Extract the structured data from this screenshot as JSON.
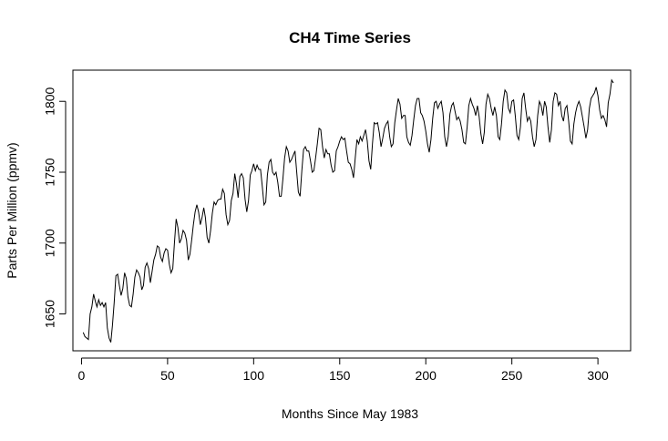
{
  "chart_data": {
    "type": "line",
    "title": "CH4 Time Series",
    "xlabel": "Months Since May 1983",
    "ylabel": "Parts Per Million (ppmv)",
    "xlim": [
      -5,
      319
    ],
    "ylim": [
      1624,
      1822
    ],
    "xticks": [
      0,
      50,
      100,
      150,
      200,
      250,
      300
    ],
    "yticks": [
      1650,
      1700,
      1750,
      1800
    ],
    "grid": false,
    "series": [
      {
        "color": "#000000",
        "points": [
          [
            1,
            1637
          ],
          [
            2,
            1634
          ],
          [
            4,
            1632
          ],
          [
            5,
            1650
          ],
          [
            6,
            1655
          ],
          [
            7,
            1664
          ],
          [
            8,
            1659
          ],
          [
            9,
            1655
          ],
          [
            10,
            1660
          ],
          [
            11,
            1656
          ],
          [
            12,
            1658
          ],
          [
            13,
            1655
          ],
          [
            14,
            1658
          ],
          [
            15,
            1640
          ],
          [
            16,
            1633
          ],
          [
            17,
            1630
          ],
          [
            18,
            1642
          ],
          [
            19,
            1658
          ],
          [
            20,
            1677
          ],
          [
            21,
            1678
          ],
          [
            22,
            1670
          ],
          [
            23,
            1663
          ],
          [
            24,
            1668
          ],
          [
            25,
            1679
          ],
          [
            26,
            1675
          ],
          [
            27,
            1662
          ],
          [
            28,
            1656
          ],
          [
            29,
            1655
          ],
          [
            30,
            1664
          ],
          [
            31,
            1676
          ],
          [
            32,
            1681
          ],
          [
            33,
            1679
          ],
          [
            34,
            1676
          ],
          [
            35,
            1667
          ],
          [
            36,
            1670
          ],
          [
            37,
            1683
          ],
          [
            38,
            1686
          ],
          [
            39,
            1682
          ],
          [
            40,
            1672
          ],
          [
            41,
            1680
          ],
          [
            42,
            1688
          ],
          [
            43,
            1692
          ],
          [
            44,
            1698
          ],
          [
            45,
            1697
          ],
          [
            46,
            1690
          ],
          [
            47,
            1687
          ],
          [
            48,
            1693
          ],
          [
            49,
            1696
          ],
          [
            50,
            1695
          ],
          [
            51,
            1685
          ],
          [
            52,
            1679
          ],
          [
            53,
            1682
          ],
          [
            54,
            1700
          ],
          [
            55,
            1717
          ],
          [
            56,
            1711
          ],
          [
            57,
            1700
          ],
          [
            58,
            1703
          ],
          [
            59,
            1709
          ],
          [
            60,
            1707
          ],
          [
            61,
            1702
          ],
          [
            62,
            1688
          ],
          [
            63,
            1692
          ],
          [
            64,
            1702
          ],
          [
            65,
            1713
          ],
          [
            66,
            1722
          ],
          [
            67,
            1727
          ],
          [
            68,
            1722
          ],
          [
            69,
            1713
          ],
          [
            70,
            1718
          ],
          [
            71,
            1725
          ],
          [
            72,
            1718
          ],
          [
            73,
            1704
          ],
          [
            74,
            1700
          ],
          [
            75,
            1709
          ],
          [
            76,
            1721
          ],
          [
            77,
            1729
          ],
          [
            78,
            1727
          ],
          [
            79,
            1730
          ],
          [
            80,
            1731
          ],
          [
            81,
            1731
          ],
          [
            82,
            1738
          ],
          [
            83,
            1735
          ],
          [
            84,
            1720
          ],
          [
            85,
            1713
          ],
          [
            86,
            1716
          ],
          [
            87,
            1730
          ],
          [
            88,
            1735
          ],
          [
            89,
            1749
          ],
          [
            90,
            1742
          ],
          [
            91,
            1732
          ],
          [
            92,
            1747
          ],
          [
            93,
            1749
          ],
          [
            94,
            1746
          ],
          [
            95,
            1731
          ],
          [
            96,
            1722
          ],
          [
            97,
            1730
          ],
          [
            98,
            1748
          ],
          [
            99,
            1751
          ],
          [
            100,
            1756
          ],
          [
            101,
            1751
          ],
          [
            102,
            1755
          ],
          [
            103,
            1752
          ],
          [
            104,
            1752
          ],
          [
            105,
            1740
          ],
          [
            106,
            1727
          ],
          [
            107,
            1729
          ],
          [
            108,
            1748
          ],
          [
            109,
            1757
          ],
          [
            110,
            1759
          ],
          [
            111,
            1750
          ],
          [
            112,
            1748
          ],
          [
            113,
            1750
          ],
          [
            114,
            1743
          ],
          [
            115,
            1733
          ],
          [
            116,
            1733
          ],
          [
            117,
            1745
          ],
          [
            118,
            1760
          ],
          [
            119,
            1768
          ],
          [
            120,
            1765
          ],
          [
            121,
            1757
          ],
          [
            122,
            1759
          ],
          [
            123,
            1762
          ],
          [
            124,
            1765
          ],
          [
            125,
            1750
          ],
          [
            126,
            1736
          ],
          [
            127,
            1733
          ],
          [
            128,
            1751
          ],
          [
            129,
            1766
          ],
          [
            130,
            1768
          ],
          [
            131,
            1765
          ],
          [
            132,
            1765
          ],
          [
            133,
            1758
          ],
          [
            134,
            1750
          ],
          [
            135,
            1751
          ],
          [
            136,
            1760
          ],
          [
            137,
            1770
          ],
          [
            138,
            1781
          ],
          [
            139,
            1780
          ],
          [
            140,
            1768
          ],
          [
            141,
            1760
          ],
          [
            142,
            1766
          ],
          [
            143,
            1763
          ],
          [
            144,
            1763
          ],
          [
            145,
            1755
          ],
          [
            146,
            1750
          ],
          [
            147,
            1751
          ],
          [
            148,
            1765
          ],
          [
            149,
            1768
          ],
          [
            150,
            1772
          ],
          [
            151,
            1775
          ],
          [
            152,
            1773
          ],
          [
            153,
            1774
          ],
          [
            154,
            1765
          ],
          [
            155,
            1757
          ],
          [
            156,
            1756
          ],
          [
            157,
            1752
          ],
          [
            158,
            1746
          ],
          [
            159,
            1760
          ],
          [
            160,
            1773
          ],
          [
            161,
            1770
          ],
          [
            162,
            1775
          ],
          [
            163,
            1772
          ],
          [
            164,
            1776
          ],
          [
            165,
            1780
          ],
          [
            166,
            1772
          ],
          [
            167,
            1758
          ],
          [
            168,
            1752
          ],
          [
            169,
            1770
          ],
          [
            170,
            1785
          ],
          [
            171,
            1784
          ],
          [
            172,
            1785
          ],
          [
            173,
            1778
          ],
          [
            174,
            1768
          ],
          [
            175,
            1774
          ],
          [
            176,
            1781
          ],
          [
            177,
            1784
          ],
          [
            178,
            1786
          ],
          [
            179,
            1775
          ],
          [
            180,
            1768
          ],
          [
            181,
            1770
          ],
          [
            182,
            1785
          ],
          [
            183,
            1794
          ],
          [
            184,
            1802
          ],
          [
            185,
            1798
          ],
          [
            186,
            1788
          ],
          [
            187,
            1790
          ],
          [
            188,
            1790
          ],
          [
            189,
            1775
          ],
          [
            190,
            1771
          ],
          [
            191,
            1769
          ],
          [
            192,
            1776
          ],
          [
            193,
            1787
          ],
          [
            194,
            1797
          ],
          [
            195,
            1802
          ],
          [
            196,
            1802
          ],
          [
            197,
            1792
          ],
          [
            198,
            1790
          ],
          [
            199,
            1786
          ],
          [
            200,
            1779
          ],
          [
            201,
            1770
          ],
          [
            202,
            1764
          ],
          [
            203,
            1773
          ],
          [
            204,
            1788
          ],
          [
            205,
            1799
          ],
          [
            206,
            1800
          ],
          [
            207,
            1795
          ],
          [
            208,
            1798
          ],
          [
            209,
            1800
          ],
          [
            210,
            1792
          ],
          [
            211,
            1775
          ],
          [
            212,
            1768
          ],
          [
            213,
            1775
          ],
          [
            214,
            1791
          ],
          [
            215,
            1797
          ],
          [
            216,
            1799
          ],
          [
            217,
            1793
          ],
          [
            218,
            1787
          ],
          [
            219,
            1789
          ],
          [
            220,
            1786
          ],
          [
            221,
            1780
          ],
          [
            222,
            1771
          ],
          [
            223,
            1770
          ],
          [
            224,
            1782
          ],
          [
            225,
            1797
          ],
          [
            226,
            1802
          ],
          [
            227,
            1798
          ],
          [
            228,
            1795
          ],
          [
            229,
            1790
          ],
          [
            230,
            1797
          ],
          [
            231,
            1789
          ],
          [
            232,
            1777
          ],
          [
            233,
            1770
          ],
          [
            234,
            1778
          ],
          [
            235,
            1798
          ],
          [
            236,
            1805
          ],
          [
            237,
            1802
          ],
          [
            238,
            1795
          ],
          [
            239,
            1790
          ],
          [
            240,
            1796
          ],
          [
            241,
            1790
          ],
          [
            242,
            1775
          ],
          [
            243,
            1773
          ],
          [
            244,
            1784
          ],
          [
            245,
            1800
          ],
          [
            246,
            1808
          ],
          [
            247,
            1806
          ],
          [
            248,
            1795
          ],
          [
            249,
            1792
          ],
          [
            250,
            1800
          ],
          [
            251,
            1801
          ],
          [
            252,
            1790
          ],
          [
            253,
            1776
          ],
          [
            254,
            1773
          ],
          [
            255,
            1782
          ],
          [
            256,
            1802
          ],
          [
            257,
            1806
          ],
          [
            258,
            1795
          ],
          [
            259,
            1786
          ],
          [
            260,
            1789
          ],
          [
            261,
            1786
          ],
          [
            262,
            1775
          ],
          [
            263,
            1768
          ],
          [
            264,
            1773
          ],
          [
            265,
            1790
          ],
          [
            266,
            1800
          ],
          [
            267,
            1797
          ],
          [
            268,
            1790
          ],
          [
            269,
            1800
          ],
          [
            270,
            1796
          ],
          [
            271,
            1782
          ],
          [
            272,
            1771
          ],
          [
            273,
            1780
          ],
          [
            274,
            1800
          ],
          [
            275,
            1806
          ],
          [
            276,
            1805
          ],
          [
            277,
            1797
          ],
          [
            278,
            1800
          ],
          [
            279,
            1790
          ],
          [
            280,
            1786
          ],
          [
            281,
            1795
          ],
          [
            282,
            1797
          ],
          [
            283,
            1786
          ],
          [
            284,
            1772
          ],
          [
            285,
            1770
          ],
          [
            286,
            1784
          ],
          [
            287,
            1792
          ],
          [
            288,
            1797
          ],
          [
            289,
            1800
          ],
          [
            290,
            1796
          ],
          [
            291,
            1789
          ],
          [
            292,
            1782
          ],
          [
            293,
            1774
          ],
          [
            294,
            1780
          ],
          [
            295,
            1795
          ],
          [
            296,
            1802
          ],
          [
            297,
            1804
          ],
          [
            298,
            1806
          ],
          [
            299,
            1810
          ],
          [
            300,
            1804
          ],
          [
            301,
            1794
          ],
          [
            302,
            1788
          ],
          [
            303,
            1790
          ],
          [
            304,
            1787
          ],
          [
            305,
            1782
          ],
          [
            306,
            1799
          ],
          [
            307,
            1805
          ],
          [
            308,
            1815
          ],
          [
            309,
            1813
          ]
        ]
      }
    ]
  }
}
